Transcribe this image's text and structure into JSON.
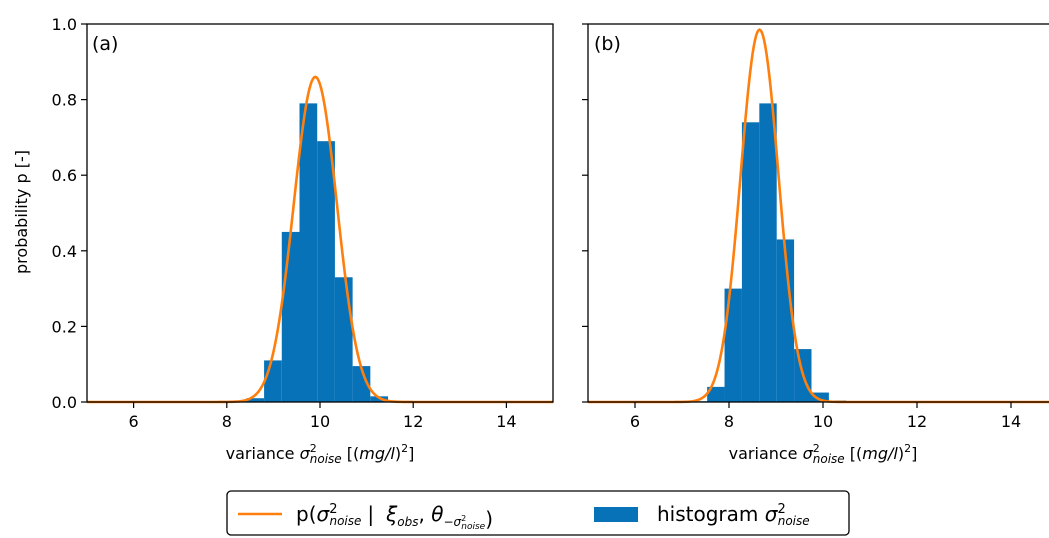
{
  "chart_data": [
    {
      "type": "bar",
      "panel_label": "(a)",
      "xlabel_prefix": "variance",
      "xlabel_symbol": "σ",
      "xlabel_sup": "2",
      "xlabel_sub": "noise",
      "xlabel_unit_open": "[(",
      "xlabel_unit_italic": "mg/l",
      "xlabel_unit_close": ")",
      "xlabel_unit_sup": "2",
      "xlabel_unit_end": "]",
      "ylabel": "probability p [-]",
      "xlim": [
        5,
        15
      ],
      "ylim": [
        0,
        1.0
      ],
      "xticks": [
        "6",
        "8",
        "10",
        "12",
        "14"
      ],
      "yticks": [
        "0.0",
        "0.2",
        "0.4",
        "0.6",
        "0.8",
        "1.0"
      ],
      "bin_width": 0.38,
      "histogram": {
        "bin_centers": [
          8.23,
          8.61,
          8.99,
          9.37,
          9.75,
          10.13,
          10.51,
          10.89,
          11.27,
          11.65
        ],
        "values": [
          0.003,
          0.01,
          0.11,
          0.45,
          0.79,
          0.69,
          0.33,
          0.095,
          0.015,
          0.002
        ]
      },
      "density": {
        "mean": 9.9,
        "sd": 0.465,
        "peak": 0.86
      }
    },
    {
      "type": "bar",
      "panel_label": "(b)",
      "xlabel_prefix": "variance",
      "xlabel_symbol": "σ",
      "xlabel_sup": "2",
      "xlabel_sub": "noise",
      "xlabel_unit_open": "[(",
      "xlabel_unit_italic": "mg/l",
      "xlabel_unit_close": ")",
      "xlabel_unit_sup": "2",
      "xlabel_unit_end": "]",
      "ylabel": "",
      "xlim": [
        5,
        15
      ],
      "ylim": [
        0,
        1.0
      ],
      "xticks": [
        "6",
        "8",
        "10",
        "12",
        "14"
      ],
      "yticks": [
        "",
        "",
        "",
        "",
        "",
        ""
      ],
      "bin_width": 0.37,
      "histogram": {
        "bin_centers": [
          7.35,
          7.72,
          8.09,
          8.46,
          8.83,
          9.2,
          9.57,
          9.94,
          10.31,
          10.68
        ],
        "values": [
          0.002,
          0.04,
          0.3,
          0.74,
          0.79,
          0.43,
          0.14,
          0.025,
          0.004,
          0.001
        ]
      },
      "density": {
        "mean": 8.65,
        "sd": 0.405,
        "peak": 0.985
      }
    }
  ],
  "legend": {
    "line_label_prefix": "p(",
    "line_label_sigma": "σ",
    "line_label_sup": "2",
    "line_label_sub": "noise",
    "line_label_sep": "|",
    "line_label_xi": "ξ",
    "line_label_xi_sub": "obs",
    "line_label_theta": "θ",
    "line_label_theta_sub": "−σ",
    "line_label_theta_subsub": "noise",
    "line_label_theta_subsup": "2",
    "line_label_close": ")",
    "bar_label_prefix": "histogram",
    "bar_label_sigma": "σ",
    "bar_label_sup": "2",
    "bar_label_sub": "noise"
  },
  "colors": {
    "histogram": "#0872b8",
    "density_line": "#ff7f0e",
    "axes": "#000000"
  }
}
